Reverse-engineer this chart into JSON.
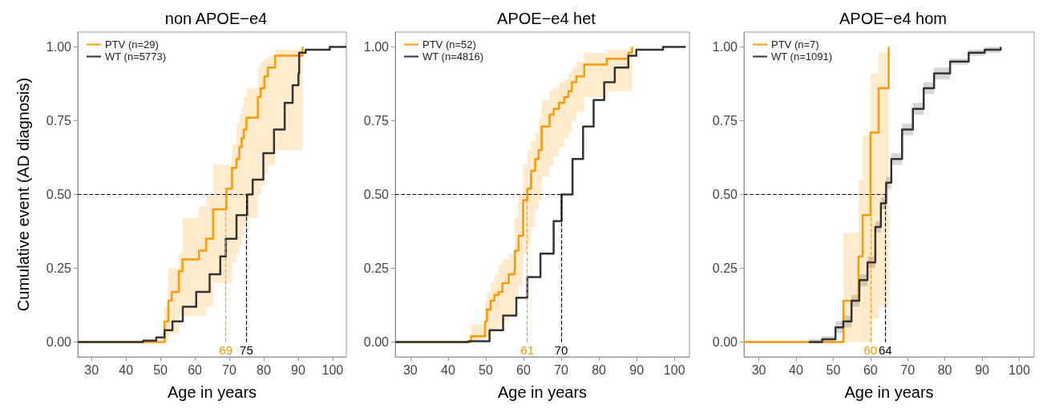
{
  "chart_data": [
    {
      "type": "step",
      "title": "non APOE−e4",
      "xlabel": "Age in years",
      "ylabel": "Cumulative event (AD diagnosis)",
      "xlim": [
        26,
        104
      ],
      "ylim": [
        -0.05,
        1.05
      ],
      "xticks": [
        30,
        40,
        50,
        60,
        70,
        80,
        90,
        100
      ],
      "yticks": [
        {
          "value": 0,
          "label": "0.00"
        },
        {
          "value": 0.25,
          "label": "0.25"
        },
        {
          "value": 0.5,
          "label": "0.50"
        },
        {
          "value": 0.75,
          "label": "0.75"
        },
        {
          "value": 1,
          "label": "1.00"
        }
      ],
      "legend": "top left",
      "series": [
        {
          "name": "PTV (n=29)",
          "color": "#ff9900",
          "x": [
            26,
            51.2,
            52.3,
            53.3,
            55.4,
            56.4,
            61.2,
            63.3,
            65.3,
            69.2,
            70.8,
            72.1,
            72.9,
            73.6,
            74.2,
            75.0,
            78.3,
            79.1,
            80.2,
            81.2,
            83.3,
            91.3
          ],
          "values": [
            0,
            0.07,
            0.14,
            0.17,
            0.24,
            0.28,
            0.31,
            0.35,
            0.45,
            0.52,
            0.59,
            0.62,
            0.66,
            0.69,
            0.72,
            0.76,
            0.83,
            0.86,
            0.9,
            0.93,
            0.97,
            1.0
          ],
          "lower": [
            0,
            0,
            0.03,
            0.03,
            0.09,
            0.09,
            0.09,
            0.12,
            0.2,
            0.2,
            0.27,
            0.3,
            0.33,
            0.36,
            0.39,
            0.42,
            0.5,
            0.53,
            0.57,
            0.6,
            0.65,
            0.76
          ],
          "upper": [
            0,
            0.12,
            0.25,
            0.25,
            0.3,
            0.42,
            0.46,
            0.5,
            0.6,
            0.6,
            0.67,
            0.74,
            0.77,
            0.8,
            0.83,
            0.86,
            0.93,
            0.95,
            0.96,
            0.97,
            0.99,
            1.0
          ]
        },
        {
          "name": "WT (n=5773)",
          "color": "#333333",
          "x": [
            26,
            45,
            48.8,
            51.2,
            53.5,
            56.5,
            60.4,
            64.3,
            67.4,
            69,
            72.1,
            75.2,
            76.8,
            79.9,
            83,
            86.1,
            88.4,
            90.1,
            90.3,
            92.2,
            99.2,
            104
          ],
          "values": [
            0,
            0.005,
            0.016,
            0.04,
            0.07,
            0.12,
            0.17,
            0.23,
            0.29,
            0.35,
            0.43,
            0.5,
            0.55,
            0.64,
            0.72,
            0.81,
            0.87,
            0.91,
            0.98,
            0.99,
            1.0,
            1.0
          ]
        }
      ],
      "ref_lines": [
        {
          "axis": "y",
          "value": 0.5,
          "color": "#000000",
          "line_style": "dashed"
        },
        {
          "axis": "x",
          "value": 69,
          "label": "69",
          "color": "#ff9900",
          "line_style": "dashed"
        },
        {
          "axis": "x",
          "value": 75,
          "label": "75",
          "color": "#000000",
          "line_style": "dashed"
        }
      ]
    },
    {
      "type": "step",
      "title": "APOE−e4 het",
      "xlabel": "Age in years",
      "xlim": [
        26,
        104
      ],
      "ylim": [
        -0.05,
        1.05
      ],
      "xticks": [
        30,
        40,
        50,
        60,
        70,
        80,
        90,
        100
      ],
      "yticks": [
        {
          "value": 0,
          "label": "0.00"
        },
        {
          "value": 0.25,
          "label": "0.25"
        },
        {
          "value": 0.5,
          "label": "0.50"
        },
        {
          "value": 0.75,
          "label": "0.75"
        },
        {
          "value": 1,
          "label": "1.00"
        }
      ],
      "legend": "top left",
      "series": [
        {
          "name": "PTV (n=52)",
          "color": "#ff9900",
          "x": [
            26,
            46.1,
            49.8,
            50.3,
            51.3,
            52.3,
            53.4,
            54.4,
            56.1,
            57.7,
            58.7,
            59.9,
            61.0,
            62.0,
            63.1,
            64.0,
            64.8,
            66.9,
            68.0,
            69.4,
            70.8,
            71.9,
            72.8,
            74.0,
            76.1,
            82.1,
            87.8,
            88.8
          ],
          "values": [
            0,
            0.02,
            0.07,
            0.11,
            0.14,
            0.16,
            0.17,
            0.2,
            0.23,
            0.31,
            0.36,
            0.48,
            0.52,
            0.58,
            0.62,
            0.65,
            0.73,
            0.77,
            0.79,
            0.81,
            0.83,
            0.85,
            0.88,
            0.9,
            0.94,
            0.96,
            0.98,
            1.0
          ],
          "lower": [
            0,
            0,
            0.01,
            0.02,
            0.03,
            0.04,
            0.05,
            0.07,
            0.09,
            0.15,
            0.19,
            0.3,
            0.33,
            0.39,
            0.45,
            0.48,
            0.56,
            0.6,
            0.63,
            0.66,
            0.69,
            0.71,
            0.75,
            0.78,
            0.83,
            0.85,
            0.85,
            0.85
          ],
          "upper": [
            0,
            0.06,
            0.14,
            0.17,
            0.2,
            0.23,
            0.26,
            0.28,
            0.3,
            0.42,
            0.5,
            0.6,
            0.65,
            0.68,
            0.71,
            0.76,
            0.82,
            0.85,
            0.86,
            0.88,
            0.89,
            0.91,
            0.93,
            0.95,
            0.98,
            0.99,
            1.0,
            1.0
          ]
        },
        {
          "name": "WT (n=4816)",
          "color": "#333333",
          "x": [
            26,
            45.4,
            51,
            54.6,
            58.1,
            61,
            64.5,
            68,
            70.1,
            73,
            75.8,
            78.6,
            81.4,
            84.2,
            87.8,
            89.9,
            97,
            103
          ],
          "values": [
            0,
            0.003,
            0.04,
            0.09,
            0.15,
            0.22,
            0.3,
            0.41,
            0.5,
            0.62,
            0.73,
            0.82,
            0.88,
            0.93,
            0.97,
            0.99,
            1.0,
            1.0
          ]
        }
      ],
      "ref_lines": [
        {
          "axis": "y",
          "value": 0.5,
          "color": "#000000",
          "line_style": "dashed"
        },
        {
          "axis": "x",
          "value": 61,
          "label": "61",
          "color": "#ff9900",
          "line_style": "dashed"
        },
        {
          "axis": "x",
          "value": 70,
          "label": "70",
          "color": "#000000",
          "line_style": "dashed"
        }
      ]
    },
    {
      "type": "step",
      "title": "APOE−e4 hom",
      "xlabel": "Age in years",
      "xlim": [
        26,
        104
      ],
      "ylim": [
        -0.05,
        1.05
      ],
      "xticks": [
        30,
        40,
        50,
        60,
        70,
        80,
        90,
        100
      ],
      "yticks": [
        {
          "value": 0,
          "label": "0.00"
        },
        {
          "value": 0.25,
          "label": "0.25"
        },
        {
          "value": 0.5,
          "label": "0.50"
        },
        {
          "value": 0.75,
          "label": "0.75"
        },
        {
          "value": 1,
          "label": "1.00"
        }
      ],
      "legend": "top left",
      "series": [
        {
          "name": "PTV (n=7)",
          "color": "#ff9900",
          "x": [
            26,
            52.7,
            56.8,
            57.9,
            60.0,
            62.2,
            64.9
          ],
          "values": [
            0,
            0.14,
            0.29,
            0.43,
            0.71,
            0.86,
            1.0
          ],
          "lower": [
            0,
            0,
            0,
            0,
            0.08,
            0.12,
            0.12
          ],
          "upper": [
            0,
            0.37,
            0.55,
            0.7,
            0.91,
            0.98,
            1.0
          ]
        },
        {
          "name": "WT (n=1091)",
          "color": "#333333",
          "x": [
            43.4,
            47,
            50.6,
            52.7,
            54.9,
            57,
            59.2,
            61.3,
            62.8,
            64.2,
            65.6,
            68.5,
            71.4,
            74.3,
            77.1,
            81.4,
            86.4,
            90.7,
            95
          ],
          "values": [
            0,
            0.01,
            0.05,
            0.07,
            0.14,
            0.21,
            0.27,
            0.39,
            0.47,
            0.54,
            0.62,
            0.72,
            0.79,
            0.86,
            0.91,
            0.95,
            0.98,
            0.99,
            1.0
          ],
          "lower": [
            0,
            0,
            0.03,
            0.05,
            0.12,
            0.19,
            0.25,
            0.37,
            0.45,
            0.52,
            0.6,
            0.7,
            0.77,
            0.84,
            0.89,
            0.94,
            0.97,
            0.98,
            0.99
          ],
          "upper": [
            0.01,
            0.02,
            0.07,
            0.09,
            0.16,
            0.23,
            0.29,
            0.41,
            0.49,
            0.56,
            0.64,
            0.74,
            0.81,
            0.88,
            0.93,
            0.96,
            0.99,
            1.0,
            1.0
          ]
        }
      ],
      "ref_lines": [
        {
          "axis": "y",
          "value": 0.5,
          "color": "#000000",
          "line_style": "dashed"
        },
        {
          "axis": "x",
          "value": 60,
          "label": "60",
          "color": "#ff9900",
          "line_style": "dashed"
        },
        {
          "axis": "x",
          "value": 64,
          "label": "64",
          "color": "#000000",
          "line_style": "dashed"
        }
      ]
    }
  ]
}
